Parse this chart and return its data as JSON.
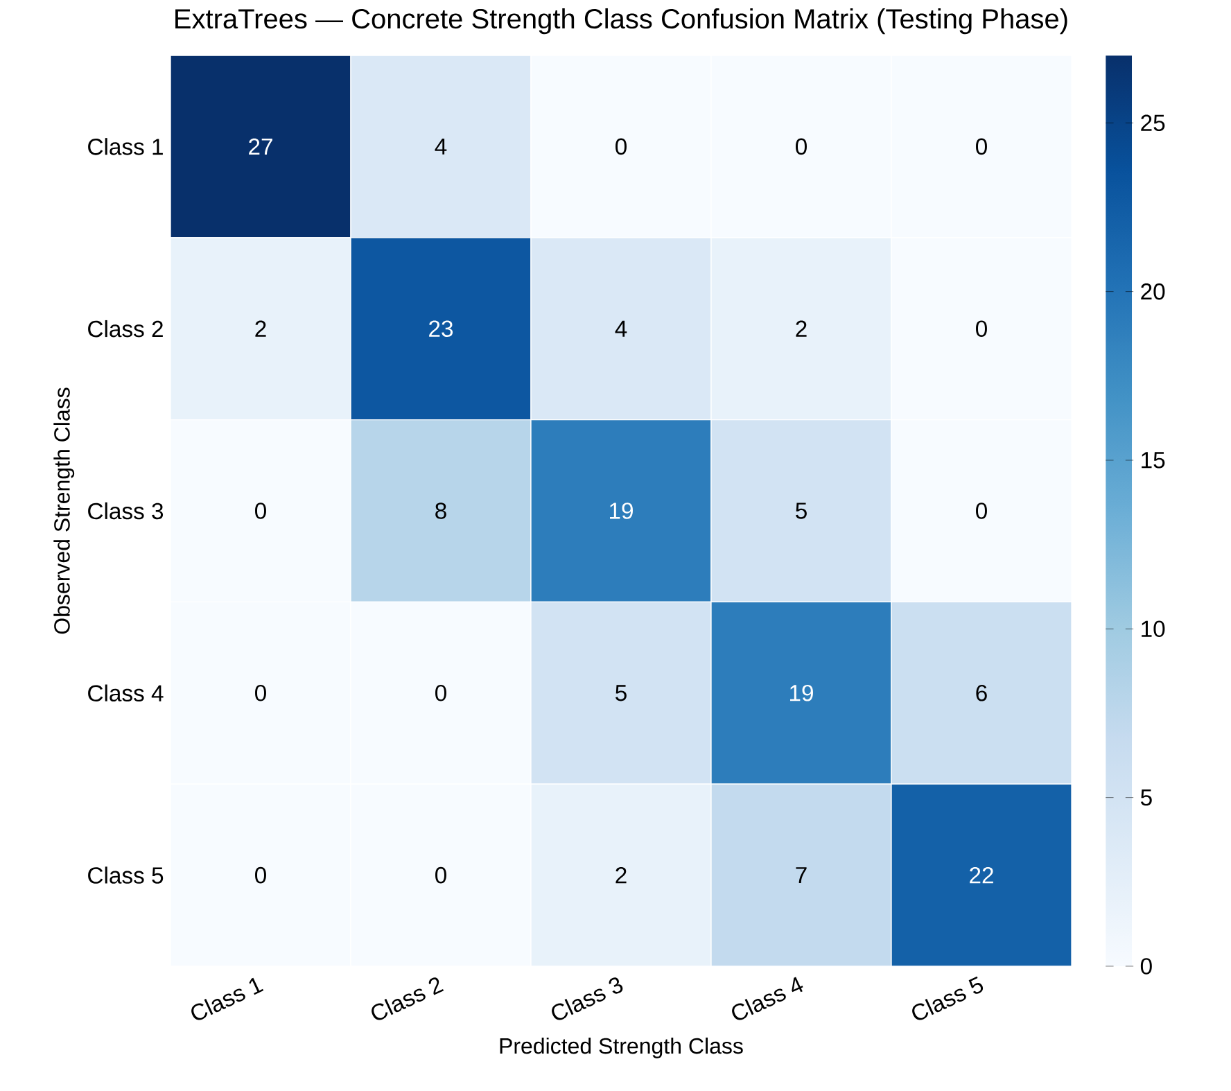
{
  "chart_data": {
    "type": "heatmap",
    "title": "ExtraTrees — Concrete Strength Class Confusion Matrix (Testing Phase)",
    "xlabel": "Predicted Strength Class",
    "ylabel": "Observed Strength Class",
    "categories": [
      "Class 1",
      "Class 2",
      "Class 3",
      "Class 4",
      "Class 5"
    ],
    "y_categories": [
      "Class 1",
      "Class 2",
      "Class 3",
      "Class 4",
      "Class 5"
    ],
    "cells": [
      [
        27,
        4,
        0,
        0,
        0
      ],
      [
        2,
        23,
        4,
        2,
        0
      ],
      [
        0,
        8,
        19,
        5,
        0
      ],
      [
        0,
        0,
        5,
        19,
        6
      ],
      [
        0,
        0,
        2,
        7,
        22
      ]
    ],
    "data_labels": true,
    "clim": [
      0,
      27
    ],
    "cticks": [
      0,
      5,
      10,
      15,
      20,
      25
    ]
  }
}
